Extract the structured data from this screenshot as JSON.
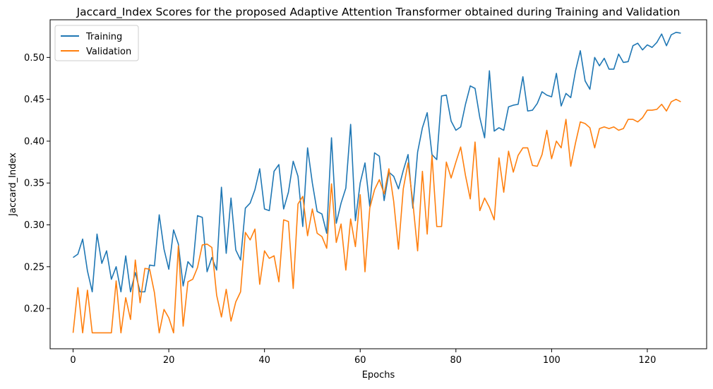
{
  "chart_data": {
    "type": "line",
    "title": "Jaccard_Index Scores for the proposed Adaptive Attention Transformer obtained during Training and Validation",
    "xlabel": "Epochs",
    "ylabel": "Jaccard_Index",
    "xlim": [
      -4.8,
      132.4
    ],
    "ylim": [
      0.152,
      0.545
    ],
    "xticks": [
      0,
      20,
      40,
      60,
      80,
      100,
      120
    ],
    "yticks": [
      0.2,
      0.25,
      0.3,
      0.35,
      0.4,
      0.45,
      0.5
    ],
    "grid": false,
    "legend": "top-left",
    "series": [
      {
        "name": "Training",
        "color": "#1f77b4",
        "values": [
          0.261,
          0.265,
          0.283,
          0.245,
          0.22,
          0.289,
          0.254,
          0.269,
          0.235,
          0.25,
          0.22,
          0.263,
          0.22,
          0.243,
          0.22,
          0.22,
          0.252,
          0.251,
          0.312,
          0.271,
          0.247,
          0.294,
          0.277,
          0.227,
          0.256,
          0.249,
          0.311,
          0.309,
          0.244,
          0.261,
          0.246,
          0.345,
          0.266,
          0.332,
          0.27,
          0.258,
          0.32,
          0.326,
          0.342,
          0.367,
          0.319,
          0.317,
          0.364,
          0.372,
          0.319,
          0.339,
          0.376,
          0.358,
          0.298,
          0.392,
          0.35,
          0.316,
          0.313,
          0.29,
          0.404,
          0.302,
          0.326,
          0.344,
          0.42,
          0.305,
          0.35,
          0.374,
          0.322,
          0.386,
          0.382,
          0.329,
          0.363,
          0.358,
          0.343,
          0.365,
          0.384,
          0.32,
          0.387,
          0.416,
          0.434,
          0.384,
          0.378,
          0.454,
          0.455,
          0.424,
          0.413,
          0.417,
          0.444,
          0.466,
          0.463,
          0.428,
          0.404,
          0.484,
          0.412,
          0.416,
          0.413,
          0.441,
          0.443,
          0.444,
          0.477,
          0.436,
          0.437,
          0.445,
          0.459,
          0.455,
          0.453,
          0.481,
          0.442,
          0.457,
          0.452,
          0.484,
          0.508,
          0.472,
          0.462,
          0.5,
          0.49,
          0.499,
          0.486,
          0.486,
          0.504,
          0.494,
          0.495,
          0.514,
          0.517,
          0.509,
          0.515,
          0.512,
          0.518,
          0.528,
          0.514,
          0.527,
          0.53,
          0.529
        ]
      },
      {
        "name": "Validation",
        "color": "#ff7f0e",
        "values": [
          0.171,
          0.225,
          0.171,
          0.222,
          0.171,
          0.171,
          0.171,
          0.171,
          0.171,
          0.233,
          0.171,
          0.213,
          0.187,
          0.258,
          0.207,
          0.248,
          0.247,
          0.219,
          0.171,
          0.199,
          0.189,
          0.171,
          0.275,
          0.179,
          0.232,
          0.235,
          0.249,
          0.276,
          0.277,
          0.273,
          0.216,
          0.19,
          0.223,
          0.185,
          0.208,
          0.22,
          0.291,
          0.282,
          0.295,
          0.229,
          0.269,
          0.26,
          0.263,
          0.232,
          0.306,
          0.304,
          0.224,
          0.325,
          0.334,
          0.287,
          0.319,
          0.29,
          0.286,
          0.272,
          0.349,
          0.279,
          0.301,
          0.246,
          0.307,
          0.274,
          0.336,
          0.244,
          0.32,
          0.342,
          0.354,
          0.337,
          0.367,
          0.328,
          0.271,
          0.343,
          0.374,
          0.327,
          0.269,
          0.364,
          0.289,
          0.383,
          0.298,
          0.298,
          0.375,
          0.356,
          0.375,
          0.393,
          0.359,
          0.331,
          0.399,
          0.317,
          0.332,
          0.321,
          0.306,
          0.38,
          0.339,
          0.388,
          0.363,
          0.383,
          0.392,
          0.392,
          0.371,
          0.37,
          0.384,
          0.413,
          0.379,
          0.4,
          0.392,
          0.426,
          0.37,
          0.398,
          0.423,
          0.421,
          0.416,
          0.392,
          0.415,
          0.417,
          0.415,
          0.417,
          0.413,
          0.415,
          0.426,
          0.426,
          0.423,
          0.428,
          0.437,
          0.437,
          0.438,
          0.444,
          0.436,
          0.447,
          0.45,
          0.447
        ]
      }
    ]
  }
}
